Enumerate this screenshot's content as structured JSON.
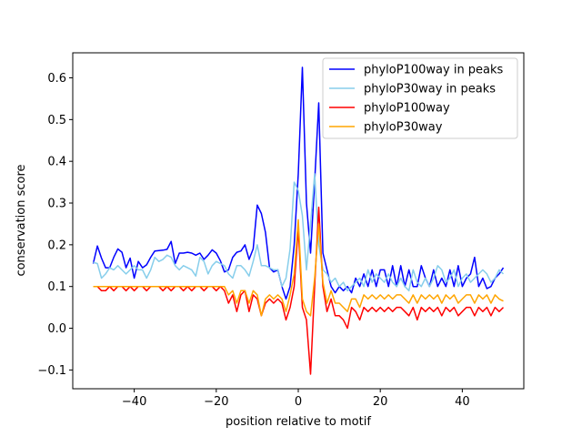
{
  "chart_data": {
    "type": "line",
    "title": "",
    "xlabel": "position relative to motif",
    "ylabel": "conservation score",
    "xlim": [
      -55,
      55
    ],
    "ylim": [
      -0.145,
      0.66
    ],
    "xticks": [
      -40,
      -20,
      0,
      20,
      40
    ],
    "xtick_labels": [
      "−40",
      "−20",
      "0",
      "20",
      "40"
    ],
    "yticks": [
      -0.1,
      0.0,
      0.1,
      0.2,
      0.3,
      0.4,
      0.5,
      0.6
    ],
    "ytick_labels": [
      "−0.1",
      "0.0",
      "0.1",
      "0.2",
      "0.3",
      "0.4",
      "0.5",
      "0.6"
    ],
    "grid": false,
    "legend_position": "upper right",
    "x": [
      -50,
      -49,
      -48,
      -47,
      -46,
      -45,
      -44,
      -43,
      -42,
      -41,
      -40,
      -39,
      -38,
      -37,
      -36,
      -35,
      -34,
      -33,
      -32,
      -31,
      -30,
      -29,
      -28,
      -27,
      -26,
      -25,
      -24,
      -23,
      -22,
      -21,
      -20,
      -19,
      -18,
      -17,
      -16,
      -15,
      -14,
      -13,
      -12,
      -11,
      -10,
      -9,
      -8,
      -7,
      -6,
      -5,
      -4,
      -3,
      -2,
      -1,
      0,
      1,
      2,
      3,
      4,
      5,
      6,
      7,
      8,
      9,
      10,
      11,
      12,
      13,
      14,
      15,
      16,
      17,
      18,
      19,
      20,
      21,
      22,
      23,
      24,
      25,
      26,
      27,
      28,
      29,
      30,
      31,
      32,
      33,
      34,
      35,
      36,
      37,
      38,
      39,
      40,
      41,
      42,
      43,
      44,
      45,
      46,
      47,
      48,
      49,
      50
    ],
    "series": [
      {
        "name": "phyloP100way in peaks",
        "color": "#0000ff",
        "values": [
          0.155,
          0.197,
          0.168,
          0.145,
          0.145,
          0.17,
          0.19,
          0.182,
          0.145,
          0.168,
          0.12,
          0.16,
          0.145,
          0.152,
          0.17,
          0.185,
          0.186,
          0.187,
          0.189,
          0.208,
          0.155,
          0.18,
          0.18,
          0.182,
          0.18,
          0.175,
          0.18,
          0.165,
          0.175,
          0.188,
          0.18,
          0.162,
          0.135,
          0.14,
          0.17,
          0.182,
          0.185,
          0.2,
          0.165,
          0.19,
          0.295,
          0.275,
          0.23,
          0.145,
          0.135,
          0.14,
          0.1,
          0.07,
          0.1,
          0.2,
          0.37,
          0.625,
          0.3,
          0.18,
          0.35,
          0.54,
          0.18,
          0.14,
          0.1,
          0.085,
          0.1,
          0.09,
          0.1,
          0.085,
          0.12,
          0.1,
          0.13,
          0.1,
          0.14,
          0.1,
          0.14,
          0.14,
          0.1,
          0.15,
          0.1,
          0.15,
          0.1,
          0.14,
          0.1,
          0.1,
          0.15,
          0.12,
          0.1,
          0.14,
          0.1,
          0.12,
          0.1,
          0.14,
          0.1,
          0.15,
          0.1,
          0.12,
          0.13,
          0.17,
          0.1,
          0.12,
          0.095,
          0.1,
          0.12,
          0.13,
          0.145
        ]
      },
      {
        "name": "phyloP30way in peaks",
        "color": "#87ceeb",
        "values": [
          0.158,
          0.155,
          0.12,
          0.13,
          0.145,
          0.14,
          0.15,
          0.14,
          0.13,
          0.14,
          0.15,
          0.14,
          0.14,
          0.12,
          0.14,
          0.17,
          0.16,
          0.165,
          0.175,
          0.17,
          0.15,
          0.14,
          0.15,
          0.145,
          0.14,
          0.125,
          0.17,
          0.16,
          0.13,
          0.15,
          0.16,
          0.155,
          0.15,
          0.13,
          0.12,
          0.15,
          0.15,
          0.14,
          0.125,
          0.16,
          0.2,
          0.15,
          0.15,
          0.145,
          0.14,
          0.14,
          0.1,
          0.12,
          0.19,
          0.35,
          0.33,
          0.27,
          0.14,
          0.25,
          0.37,
          0.2,
          0.14,
          0.13,
          0.11,
          0.12,
          0.1,
          0.11,
          0.09,
          0.1,
          0.11,
          0.12,
          0.1,
          0.14,
          0.11,
          0.13,
          0.12,
          0.11,
          0.13,
          0.11,
          0.1,
          0.12,
          0.1,
          0.09,
          0.14,
          0.11,
          0.1,
          0.12,
          0.1,
          0.12,
          0.15,
          0.14,
          0.11,
          0.12,
          0.14,
          0.1,
          0.12,
          0.13,
          0.11,
          0.12,
          0.13,
          0.14,
          0.13,
          0.11,
          0.12,
          0.14,
          0.13
        ]
      },
      {
        "name": "phyloP100way",
        "color": "#ff0000",
        "values": [
          0.1,
          0.1,
          0.09,
          0.09,
          0.1,
          0.09,
          0.1,
          0.1,
          0.09,
          0.1,
          0.09,
          0.1,
          0.1,
          0.09,
          0.1,
          0.1,
          0.1,
          0.09,
          0.1,
          0.09,
          0.1,
          0.1,
          0.09,
          0.1,
          0.09,
          0.1,
          0.1,
          0.09,
          0.1,
          0.1,
          0.09,
          0.1,
          0.09,
          0.06,
          0.08,
          0.04,
          0.08,
          0.09,
          0.04,
          0.08,
          0.07,
          0.03,
          0.06,
          0.07,
          0.06,
          0.07,
          0.06,
          0.02,
          0.05,
          0.1,
          0.24,
          0.05,
          0.02,
          -0.11,
          0.1,
          0.29,
          0.1,
          0.04,
          0.07,
          0.03,
          0.03,
          0.02,
          0.0,
          0.05,
          0.04,
          0.02,
          0.05,
          0.04,
          0.05,
          0.04,
          0.05,
          0.04,
          0.05,
          0.04,
          0.05,
          0.05,
          0.04,
          0.03,
          0.05,
          0.02,
          0.05,
          0.04,
          0.05,
          0.04,
          0.05,
          0.03,
          0.05,
          0.04,
          0.05,
          0.03,
          0.04,
          0.05,
          0.05,
          0.03,
          0.05,
          0.04,
          0.05,
          0.03,
          0.05,
          0.04,
          0.05
        ]
      },
      {
        "name": "phyloP30way",
        "color": "#ffa500",
        "values": [
          0.1,
          0.1,
          0.1,
          0.1,
          0.1,
          0.1,
          0.1,
          0.1,
          0.1,
          0.1,
          0.1,
          0.1,
          0.1,
          0.1,
          0.1,
          0.1,
          0.1,
          0.1,
          0.1,
          0.1,
          0.1,
          0.1,
          0.1,
          0.1,
          0.1,
          0.1,
          0.1,
          0.1,
          0.1,
          0.1,
          0.1,
          0.1,
          0.1,
          0.08,
          0.09,
          0.06,
          0.09,
          0.09,
          0.06,
          0.09,
          0.08,
          0.03,
          0.07,
          0.08,
          0.07,
          0.08,
          0.07,
          0.04,
          0.08,
          0.13,
          0.26,
          0.07,
          0.04,
          0.03,
          0.12,
          0.25,
          0.11,
          0.06,
          0.09,
          0.06,
          0.06,
          0.05,
          0.04,
          0.07,
          0.07,
          0.05,
          0.08,
          0.07,
          0.08,
          0.07,
          0.08,
          0.07,
          0.08,
          0.07,
          0.08,
          0.08,
          0.07,
          0.06,
          0.08,
          0.06,
          0.08,
          0.07,
          0.08,
          0.07,
          0.08,
          0.06,
          0.08,
          0.07,
          0.08,
          0.06,
          0.07,
          0.08,
          0.08,
          0.06,
          0.08,
          0.07,
          0.08,
          0.06,
          0.08,
          0.07,
          0.065
        ]
      }
    ]
  }
}
